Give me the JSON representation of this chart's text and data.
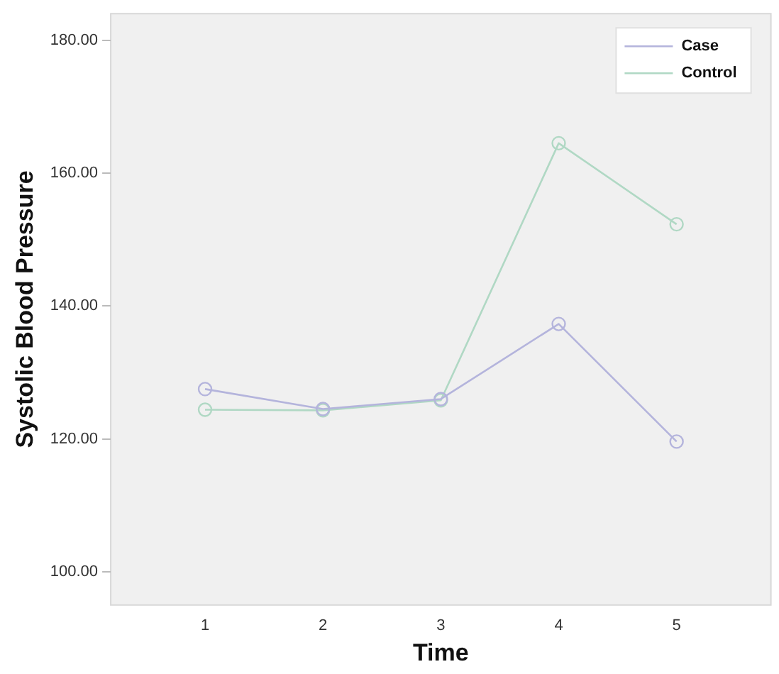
{
  "chart_data": {
    "type": "line",
    "xlabel": "Time",
    "ylabel": "Systolic Blood Pressure",
    "x": [
      1,
      2,
      3,
      4,
      5
    ],
    "series": [
      {
        "name": "Case",
        "color": "#b4b4dc",
        "values": [
          127.5,
          124.5,
          126.0,
          137.3,
          119.6
        ]
      },
      {
        "name": "Control",
        "color": "#b0d8c4",
        "values": [
          124.4,
          124.3,
          125.8,
          164.5,
          152.3
        ]
      }
    ],
    "xlim": [
      0.2,
      5.8
    ],
    "xticks": [
      1,
      2,
      3,
      4,
      5
    ],
    "ylim": [
      95,
      184
    ],
    "yticks": [
      {
        "value": 100,
        "label": "100.00"
      },
      {
        "value": 120,
        "label": "120.00"
      },
      {
        "value": 140,
        "label": "140.00"
      },
      {
        "value": 160,
        "label": "160.00"
      },
      {
        "value": 180,
        "label": "180.00"
      }
    ],
    "grid": false,
    "legend": "top right",
    "marker": "circle",
    "line_style": "solid"
  }
}
